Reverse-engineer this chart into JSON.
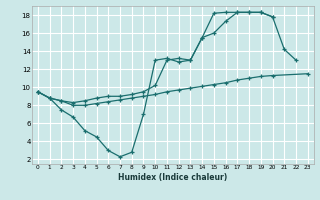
{
  "xlabel": "Humidex (Indice chaleur)",
  "bg_color": "#cce8e8",
  "line_color": "#1a6e6e",
  "grid_color": "#ffffff",
  "xlim": [
    -0.5,
    23.5
  ],
  "ylim": [
    1.5,
    19.0
  ],
  "xticks": [
    0,
    1,
    2,
    3,
    4,
    5,
    6,
    7,
    8,
    9,
    10,
    11,
    12,
    13,
    14,
    15,
    16,
    17,
    18,
    19,
    20,
    21,
    22,
    23
  ],
  "yticks": [
    2,
    4,
    6,
    8,
    10,
    12,
    14,
    16,
    18
  ],
  "line1_x": [
    0,
    1,
    2,
    3,
    4,
    5,
    6,
    7,
    8,
    9,
    10,
    11,
    12,
    13,
    14,
    15,
    16,
    17,
    18,
    19,
    20,
    21,
    22
  ],
  "line1_y": [
    9.5,
    8.8,
    7.5,
    6.7,
    5.2,
    4.5,
    3.0,
    2.3,
    2.8,
    7.0,
    13.0,
    13.2,
    12.8,
    13.0,
    15.5,
    16.0,
    17.3,
    18.3,
    18.3,
    18.3,
    17.8,
    14.2,
    13.0
  ],
  "line2_x": [
    0,
    1,
    2,
    3,
    4,
    5,
    6,
    7,
    8,
    9,
    10,
    11,
    12,
    13,
    14,
    15,
    16,
    17,
    18,
    19,
    20
  ],
  "line2_y": [
    9.5,
    8.8,
    8.5,
    8.3,
    8.5,
    8.8,
    9.0,
    9.0,
    9.2,
    9.5,
    10.2,
    13.0,
    13.2,
    13.0,
    15.5,
    18.2,
    18.3,
    18.3,
    18.3,
    18.3,
    17.8
  ],
  "line3_x": [
    0,
    1,
    2,
    3,
    4,
    5,
    6,
    7,
    8,
    9,
    10,
    11,
    12,
    13,
    14,
    15,
    16,
    17,
    18,
    19,
    20,
    23
  ],
  "line3_y": [
    9.5,
    8.8,
    8.5,
    8.0,
    8.0,
    8.2,
    8.4,
    8.6,
    8.8,
    9.0,
    9.2,
    9.5,
    9.7,
    9.9,
    10.1,
    10.3,
    10.5,
    10.8,
    11.0,
    11.2,
    11.3,
    11.5
  ]
}
